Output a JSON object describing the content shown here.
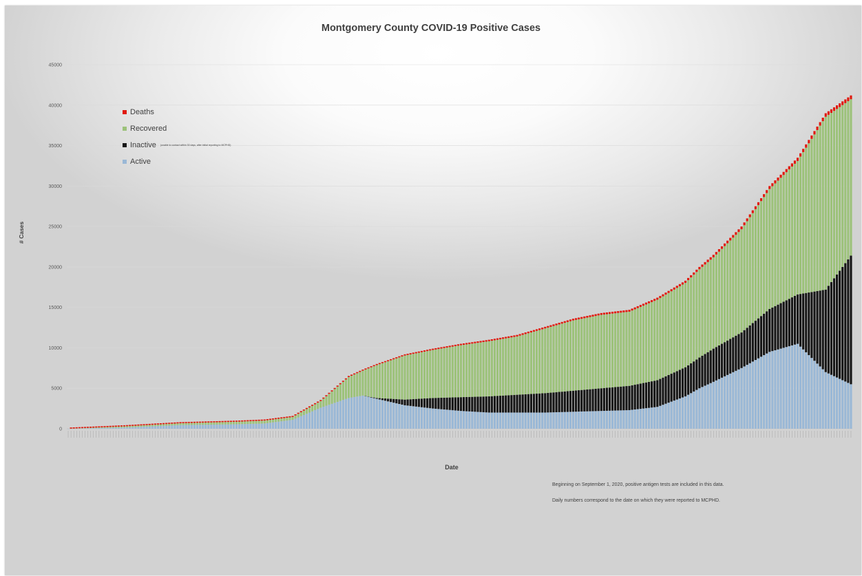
{
  "chart_data": {
    "type": "bar",
    "stacked": true,
    "title": "Montgomery County COVID-19 Positive Cases",
    "xlabel": "Date",
    "ylabel": "# Cases",
    "ylim": [
      0,
      45000
    ],
    "yticks": [
      0,
      5000,
      10000,
      15000,
      20000,
      25000,
      30000,
      35000,
      40000,
      45000
    ],
    "grid": true,
    "legend_position": "top-left",
    "colors": {
      "Deaths": "#e0190f",
      "Recovered": "#9cc27a",
      "Inactive": "#161616",
      "Active": "#9ab8d6"
    },
    "series": [
      {
        "name": "Deaths",
        "color": "#e0190f"
      },
      {
        "name": "Recovered",
        "color": "#9cc27a"
      },
      {
        "name": "Inactive",
        "note": "(unable to contact within 30 days, after initial reporting to MCPHD)",
        "color": "#161616"
      },
      {
        "name": "Active",
        "color": "#9ab8d6"
      }
    ],
    "bar_count": 280,
    "sampled_points": {
      "bar_index": [
        0,
        20,
        40,
        60,
        70,
        80,
        90,
        100,
        105,
        110,
        120,
        130,
        140,
        150,
        160,
        170,
        180,
        190,
        200,
        210,
        220,
        225,
        230,
        240,
        250,
        260,
        270,
        279
      ],
      "total": [
        2,
        300,
        700,
        900,
        1050,
        1500,
        3500,
        6500,
        7300,
        8000,
        9200,
        9900,
        10500,
        11000,
        11600,
        12600,
        13600,
        14300,
        14700,
        16200,
        18300,
        20000,
        21500,
        25000,
        30000,
        33500,
        39000,
        41200
      ],
      "deaths": [
        0,
        5,
        20,
        35,
        40,
        50,
        80,
        110,
        120,
        130,
        150,
        165,
        175,
        185,
        195,
        205,
        215,
        225,
        235,
        250,
        270,
        290,
        310,
        340,
        370,
        400,
        440,
        470
      ],
      "inactive": [
        0,
        0,
        0,
        0,
        0,
        0,
        0,
        0,
        0,
        100,
        700,
        1300,
        1700,
        2000,
        2200,
        2400,
        2600,
        2800,
        3000,
        3300,
        3600,
        3800,
        4100,
        4400,
        5300,
        6100,
        10200,
        15900
      ],
      "active": [
        2,
        150,
        450,
        550,
        650,
        1100,
        2600,
        3800,
        4100,
        3700,
        2900,
        2500,
        2200,
        2000,
        2000,
        2000,
        2100,
        2200,
        2300,
        2700,
        4000,
        5000,
        5800,
        7500,
        9500,
        10500,
        7000,
        5500
      ]
    },
    "annotations": [
      "Beginning on September 1, 2020, positive antigen tests are included in this data.",
      "Daily numbers correspond to the date on which they were reported to MCPHD."
    ]
  }
}
